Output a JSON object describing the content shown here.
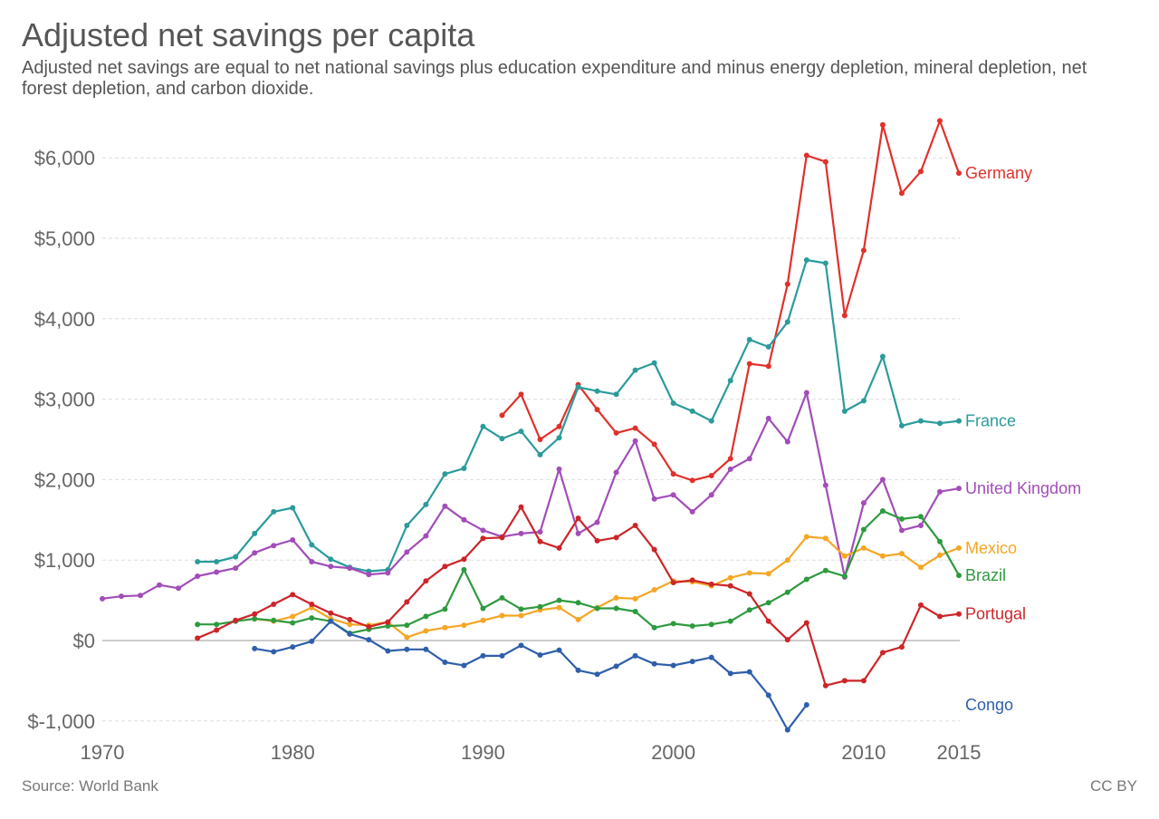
{
  "title": "Adjusted net savings per capita",
  "subtitle": "Adjusted net savings are equal to net national savings plus education expenditure and minus energy depletion, mineral depletion, net forest depletion, and carbon dioxide.",
  "source": "Source: World Bank",
  "license": "CC BY",
  "chart_data": {
    "type": "line",
    "title": "Adjusted net savings per capita",
    "xlim": [
      1970,
      2015
    ],
    "ylim": [
      -1150,
      6600
    ],
    "x_ticks": [
      1970,
      1980,
      1990,
      2000,
      2010,
      2015
    ],
    "x_tick_labels": [
      "1970",
      "1980",
      "1990",
      "2000",
      "2010",
      "2015"
    ],
    "y_ticks": [
      -1000,
      0,
      1000,
      2000,
      3000,
      4000,
      5000,
      6000
    ],
    "y_tick_labels": [
      "$-1,000",
      "$0",
      "$1,000",
      "$2,000",
      "$3,000",
      "$4,000",
      "$5,000",
      "$6,000"
    ],
    "grid": "horizontal dashed",
    "legend": "inline labels at line ends",
    "series": [
      {
        "name": "Germany",
        "color": "#e0312b",
        "x": [
          1991,
          1992,
          1993,
          1994,
          1995,
          1996,
          1997,
          1998,
          1999,
          2000,
          2001,
          2002,
          2003,
          2004,
          2005,
          2006,
          2007,
          2008,
          2009,
          2010,
          2011,
          2012,
          2013,
          2014,
          2015
        ],
        "values": [
          2800,
          3060,
          2500,
          2660,
          3180,
          2870,
          2580,
          2640,
          2440,
          2070,
          1990,
          2050,
          2260,
          3440,
          3410,
          4430,
          6030,
          5950,
          4040,
          4850,
          6410,
          5560,
          5830,
          6460,
          5810
        ]
      },
      {
        "name": "France",
        "color": "#2b9b9b",
        "x": [
          1975,
          1976,
          1977,
          1978,
          1979,
          1980,
          1981,
          1982,
          1983,
          1984,
          1985,
          1986,
          1987,
          1988,
          1989,
          1990,
          1991,
          1992,
          1993,
          1994,
          1995,
          1996,
          1997,
          1998,
          1999,
          2000,
          2001,
          2002,
          2003,
          2004,
          2005,
          2006,
          2007,
          2008,
          2009,
          2010,
          2011,
          2012,
          2013,
          2014,
          2015
        ],
        "values": [
          980,
          980,
          1040,
          1330,
          1600,
          1650,
          1190,
          1010,
          910,
          860,
          880,
          1430,
          1690,
          2070,
          2140,
          2660,
          2510,
          2600,
          2310,
          2520,
          3150,
          3100,
          3060,
          3360,
          3450,
          2950,
          2850,
          2730,
          3230,
          3740,
          3650,
          3960,
          4730,
          4690,
          2850,
          2980,
          3530,
          2670,
          2730,
          2700,
          2730
        ]
      },
      {
        "name": "United Kingdom",
        "color": "#a24db8",
        "x": [
          1970,
          1971,
          1972,
          1973,
          1974,
          1975,
          1976,
          1977,
          1978,
          1979,
          1980,
          1981,
          1982,
          1983,
          1984,
          1985,
          1986,
          1987,
          1988,
          1989,
          1990,
          1991,
          1992,
          1993,
          1994,
          1995,
          1996,
          1997,
          1998,
          1999,
          2000,
          2001,
          2002,
          2003,
          2004,
          2005,
          2006,
          2007,
          2008,
          2009,
          2010,
          2011,
          2012,
          2013,
          2014,
          2015
        ],
        "values": [
          520,
          550,
          560,
          690,
          650,
          800,
          850,
          900,
          1090,
          1180,
          1250,
          980,
          920,
          900,
          820,
          840,
          1100,
          1300,
          1670,
          1500,
          1370,
          1290,
          1330,
          1350,
          2130,
          1330,
          1470,
          2090,
          2480,
          1760,
          1810,
          1600,
          1810,
          2130,
          2260,
          2760,
          2470,
          3080,
          1930,
          790,
          1710,
          2000,
          1370,
          1430,
          1850,
          1890
        ]
      },
      {
        "name": "Mexico",
        "color": "#f5a623",
        "x": [
          1978,
          1979,
          1980,
          1981,
          1982,
          1983,
          1984,
          1985,
          1986,
          1987,
          1988,
          1989,
          1990,
          1991,
          1992,
          1993,
          1994,
          1995,
          1996,
          1997,
          1998,
          1999,
          2000,
          2001,
          2002,
          2003,
          2004,
          2005,
          2006,
          2007,
          2008,
          2009,
          2010,
          2011,
          2012,
          2013,
          2014,
          2015
        ],
        "values": [
          270,
          240,
          300,
          410,
          270,
          200,
          190,
          230,
          40,
          120,
          160,
          190,
          250,
          310,
          310,
          380,
          410,
          260,
          410,
          530,
          520,
          630,
          740,
          730,
          680,
          780,
          840,
          830,
          1000,
          1290,
          1270,
          1050,
          1150,
          1050,
          1080,
          910,
          1060,
          1150
        ]
      },
      {
        "name": "Brazil",
        "color": "#2e9a3f",
        "x": [
          1975,
          1976,
          1977,
          1978,
          1979,
          1980,
          1981,
          1982,
          1983,
          1984,
          1985,
          1986,
          1987,
          1988,
          1989,
          1990,
          1991,
          1992,
          1993,
          1994,
          1995,
          1996,
          1997,
          1998,
          1999,
          2000,
          2001,
          2002,
          2003,
          2004,
          2005,
          2006,
          2007,
          2008,
          2009,
          2010,
          2011,
          2012,
          2013,
          2014,
          2015
        ],
        "values": [
          200,
          200,
          240,
          270,
          250,
          220,
          280,
          240,
          90,
          140,
          180,
          190,
          300,
          390,
          880,
          400,
          530,
          390,
          420,
          500,
          470,
          400,
          400,
          360,
          160,
          210,
          180,
          200,
          240,
          380,
          470,
          600,
          760,
          870,
          800,
          1380,
          1610,
          1510,
          1540,
          1230,
          810
        ]
      },
      {
        "name": "Portugal",
        "color": "#cc2529",
        "x": [
          1975,
          1976,
          1977,
          1978,
          1979,
          1980,
          1981,
          1982,
          1983,
          1984,
          1985,
          1986,
          1987,
          1988,
          1989,
          1990,
          1991,
          1992,
          1993,
          1994,
          1995,
          1996,
          1997,
          1998,
          1999,
          2000,
          2001,
          2002,
          2003,
          2004,
          2005,
          2006,
          2007,
          2008,
          2009,
          2010,
          2011,
          2012,
          2013,
          2014,
          2015
        ],
        "values": [
          30,
          130,
          250,
          330,
          450,
          570,
          450,
          340,
          260,
          170,
          230,
          480,
          740,
          920,
          1010,
          1270,
          1280,
          1660,
          1230,
          1150,
          1520,
          1240,
          1280,
          1430,
          1130,
          720,
          750,
          700,
          680,
          580,
          240,
          10,
          220,
          -560,
          -500,
          -500,
          -150,
          -80,
          440,
          300,
          330
        ]
      },
      {
        "name": "Congo",
        "color": "#2f5faa",
        "x": [
          1978,
          1979,
          1980,
          1981,
          1982,
          1983,
          1984,
          1985,
          1986,
          1987,
          1988,
          1989,
          1990,
          1991,
          1992,
          1993,
          1994,
          1995,
          1996,
          1997,
          1998,
          1999,
          2000,
          2001,
          2002,
          2003,
          2004,
          2005,
          2006,
          2007
        ],
        "values": [
          -100,
          -140,
          -80,
          -10,
          240,
          80,
          10,
          -130,
          -110,
          -110,
          -270,
          -310,
          -190,
          -190,
          -60,
          -180,
          -120,
          -370,
          -420,
          -320,
          -190,
          -290,
          -310,
          -260,
          -210,
          -410,
          -390,
          -680,
          -1110,
          -800
        ]
      }
    ]
  }
}
